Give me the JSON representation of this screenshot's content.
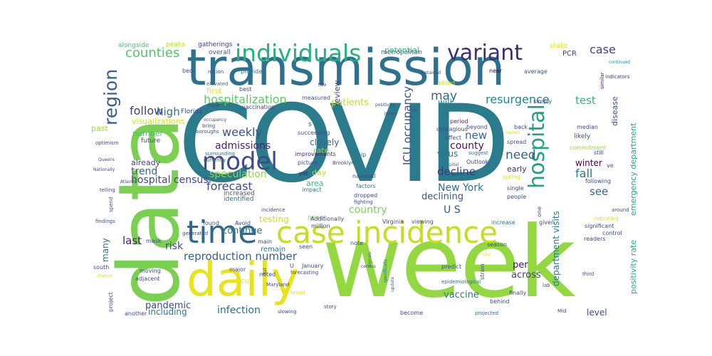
{
  "words": [
    {
      "text": "COVID",
      "color": "#2a7b8c"
    },
    {
      "text": "week",
      "color": "#93d741"
    },
    {
      "text": "data",
      "color": "#7ad151"
    },
    {
      "text": "transmission",
      "color": "#2c728e"
    },
    {
      "text": "daily",
      "color": "#e7e419"
    },
    {
      "text": "case incidence",
      "color": "#c2df23"
    },
    {
      "text": "individuals",
      "color": "#2ab07f"
    },
    {
      "text": "variant",
      "color": "#3f2d76"
    },
    {
      "text": "region",
      "color": "#355f8d"
    },
    {
      "text": "time",
      "color": "#31688e"
    },
    {
      "text": "hospital",
      "color": "#1fa187"
    },
    {
      "text": "model",
      "color": "#3e4a89"
    },
    {
      "text": "counties",
      "color": "#52c569"
    },
    {
      "text": "case",
      "color": "#433e85"
    },
    {
      "text": "may",
      "color": "#2f6b8e"
    },
    {
      "text": "ICU occupancy",
      "color": "#3b528b"
    },
    {
      "text": "hospitalization",
      "color": "#5ec962"
    },
    {
      "text": "resurgence",
      "color": "#24868e"
    },
    {
      "text": "test",
      "color": "#2fb47c"
    },
    {
      "text": "follow",
      "color": "#433e85"
    },
    {
      "text": "high",
      "color": "#2c728e"
    },
    {
      "text": "weekly",
      "color": "#3b528b"
    },
    {
      "text": "admissions",
      "color": "#482173"
    },
    {
      "text": "new",
      "color": "#31688e"
    },
    {
      "text": "county",
      "color": "#471164"
    },
    {
      "text": "forecast",
      "color": "#3e4a89"
    },
    {
      "text": "speculation",
      "color": "#8fd744"
    },
    {
      "text": "decline",
      "color": "#46327e"
    },
    {
      "text": "need",
      "color": "#355f8d"
    },
    {
      "text": "fall",
      "color": "#2a788e"
    },
    {
      "text": "hospital census",
      "color": "#3f4788"
    },
    {
      "text": "trend",
      "color": "#33638d"
    },
    {
      "text": "New York",
      "color": "#2d708e"
    },
    {
      "text": "U S",
      "color": "#3b528b"
    },
    {
      "text": "see",
      "color": "#306a8e"
    },
    {
      "text": "reproduction number",
      "color": "#355f8d"
    },
    {
      "text": "country",
      "color": "#7ad151"
    },
    {
      "text": "last",
      "color": "#482173"
    },
    {
      "text": "risk",
      "color": "#3e4a89"
    },
    {
      "text": "continue",
      "color": "#2c728e"
    },
    {
      "text": "testing",
      "color": "#d0e11c"
    },
    {
      "text": "pandemic",
      "color": "#3e4a89"
    },
    {
      "text": "infection",
      "color": "#2c728e"
    },
    {
      "text": "including",
      "color": "#29798e"
    },
    {
      "text": "vaccine",
      "color": "#2a788e"
    },
    {
      "text": "across",
      "color": "#443983"
    },
    {
      "text": "per",
      "color": "#471164"
    },
    {
      "text": "department visits",
      "color": "#2a788e"
    },
    {
      "text": "emergency department",
      "color": "#22a785"
    },
    {
      "text": "positivity rate",
      "color": "#25ac82"
    },
    {
      "text": "disease",
      "color": "#3b528b"
    },
    {
      "text": "winter",
      "color": "#440154"
    },
    {
      "text": "patients",
      "color": "#c2df23"
    },
    {
      "text": "review",
      "color": "#414487"
    },
    {
      "text": "closely",
      "color": "#31688e"
    },
    {
      "text": "declining",
      "color": "#38588c"
    },
    {
      "text": "level",
      "color": "#3e4a89"
    },
    {
      "text": "many",
      "color": "#2a788e"
    },
    {
      "text": "number",
      "color": "#40bd72"
    },
    {
      "text": "already",
      "color": "#423f85"
    },
    {
      "text": "past",
      "color": "#a5db36"
    },
    {
      "text": "will",
      "color": "#26828e"
    },
    {
      "text": "early",
      "color": "#472a7a"
    },
    {
      "text": "virus",
      "color": "#2c728e"
    },
    {
      "text": "area",
      "color": "#3aba76"
    },
    {
      "text": "day",
      "color": "#b5de2b"
    },
    {
      "text": "rate",
      "color": "#95d840"
    },
    {
      "text": "first",
      "color": "#e5e419"
    },
    {
      "text": "potential",
      "color": "#34b679"
    },
    {
      "text": "Florida",
      "color": "#3e4a89"
    },
    {
      "text": "PCR",
      "color": "#443983"
    },
    {
      "text": "state",
      "color": "#e5e419"
    },
    {
      "text": "overall",
      "color": "#38588c"
    },
    {
      "text": "gatherings",
      "color": "#433e85"
    },
    {
      "text": "peaks",
      "color": "#b8de29"
    },
    {
      "text": "alongside",
      "color": "#4ac16d"
    },
    {
      "text": "metropolitan",
      "color": "#2c728e"
    },
    {
      "text": "provide",
      "color": "#2a788e"
    },
    {
      "text": "nation",
      "color": "#39568c"
    },
    {
      "text": "bed",
      "color": "#3b528b"
    },
    {
      "text": "elevated",
      "color": "#2c728e"
    },
    {
      "text": "best",
      "color": "#423f85"
    },
    {
      "text": "measured",
      "color": "#39568c"
    },
    {
      "text": "added",
      "color": "#c8e020"
    },
    {
      "text": "near",
      "color": "#440154"
    },
    {
      "text": "average",
      "color": "#3b528b"
    },
    {
      "text": "similar",
      "color": "#48186a"
    },
    {
      "text": "indicators",
      "color": "#46337e"
    },
    {
      "text": "continued",
      "color": "#26828e"
    },
    {
      "text": "two",
      "color": "#440154"
    },
    {
      "text": "now",
      "color": "#3e4a89"
    },
    {
      "text": "vaccination",
      "color": "#424086"
    },
    {
      "text": "visualizations",
      "color": "#d8e219"
    },
    {
      "text": "bring",
      "color": "#3e4a89"
    },
    {
      "text": "boroughs",
      "color": "#3b528b"
    },
    {
      "text": "future",
      "color": "#39568c"
    },
    {
      "text": "optimism",
      "color": "#414487"
    },
    {
      "text": "surrounding",
      "color": "#2c728e"
    },
    {
      "text": "currently",
      "color": "#2a788e"
    },
    {
      "text": "increased",
      "color": "#38588c"
    },
    {
      "text": "identified",
      "color": "#2c728e"
    },
    {
      "text": "improvements",
      "color": "#481f70"
    },
    {
      "text": "picture",
      "color": "#3e4a89"
    },
    {
      "text": "Brooklyn",
      "color": "#3e4a89"
    },
    {
      "text": "yet",
      "color": "#481f70"
    },
    {
      "text": "impact",
      "color": "#2c728e"
    },
    {
      "text": "national",
      "color": "#3e4a89"
    },
    {
      "text": "factors",
      "color": "#2a788e"
    },
    {
      "text": "dropped",
      "color": "#3b528b"
    },
    {
      "text": "fighting",
      "color": "#3e4a89"
    },
    {
      "text": "never",
      "color": "#7fd34e"
    },
    {
      "text": "succeeding",
      "color": "#3e4a89"
    },
    {
      "text": "Jersey",
      "color": "#3b528b"
    },
    {
      "text": "capital",
      "color": "#2c728e"
    },
    {
      "text": "Outlook",
      "color": "#3e4a89"
    },
    {
      "text": "effect",
      "color": "#39568c"
    },
    {
      "text": "beyond",
      "color": "#3e4a89"
    },
    {
      "text": "period",
      "color": "#481f70"
    },
    {
      "text": "contagious",
      "color": "#3e4a89"
    },
    {
      "text": "help",
      "color": "#2a788e"
    },
    {
      "text": "back",
      "color": "#3e4a89"
    },
    {
      "text": "spread",
      "color": "#3b528b"
    },
    {
      "text": "suggest",
      "color": "#2c728e"
    },
    {
      "text": "median",
      "color": "#3e4a89"
    },
    {
      "text": "likely",
      "color": "#3e4a89"
    },
    {
      "text": "commitment",
      "color": "#95d840"
    },
    {
      "text": "still",
      "color": "#3e4a89"
    },
    {
      "text": "following",
      "color": "#3e4a89"
    },
    {
      "text": "spring",
      "color": "#d8e219"
    },
    {
      "text": "simply",
      "color": "#3e4a89"
    },
    {
      "text": "single",
      "color": "#3e4a89"
    },
    {
      "text": "people",
      "color": "#3e4a89"
    },
    {
      "text": "one",
      "color": "#3e4a89"
    },
    {
      "text": "increase",
      "color": "#2c728e"
    },
    {
      "text": "given",
      "color": "#3e4a89"
    },
    {
      "text": "significant",
      "color": "#3e4a89"
    },
    {
      "text": "around",
      "color": "#3e4a89"
    },
    {
      "text": "indicating",
      "color": "#d8e219"
    },
    {
      "text": "control",
      "color": "#3e4a89"
    },
    {
      "text": "readers",
      "color": "#3e4a89"
    },
    {
      "text": "predict",
      "color": "#3e4a89"
    },
    {
      "text": "strain",
      "color": "#3e4a89"
    },
    {
      "text": "season",
      "color": "#3e4a89"
    },
    {
      "text": "city",
      "color": "#d8e219"
    },
    {
      "text": "epidemiological",
      "color": "#2c728e"
    },
    {
      "text": "behind",
      "color": "#3e4a89"
    },
    {
      "text": "finally",
      "color": "#3e4a89"
    },
    {
      "text": "become",
      "color": "#3e4a89"
    },
    {
      "text": "projected",
      "color": "#2c728e"
    },
    {
      "text": "third",
      "color": "#3e4a89"
    },
    {
      "text": "Mid",
      "color": "#3e4a89"
    },
    {
      "text": "lab",
      "color": "#3e4a89"
    },
    {
      "text": "viewing",
      "color": "#3e4a89"
    },
    {
      "text": "Virginia",
      "color": "#3e4a89"
    },
    {
      "text": "million",
      "color": "#3e4a89"
    },
    {
      "text": "Additionally",
      "color": "#3e4a89"
    },
    {
      "text": "incidence",
      "color": "#3e4a89"
    },
    {
      "text": "note",
      "color": "#3e4a89"
    },
    {
      "text": "census",
      "color": "#3e4a89"
    },
    {
      "text": "signals",
      "color": "#2c728e"
    },
    {
      "text": "specifically",
      "color": "#2c728e"
    },
    {
      "text": "update",
      "color": "#2c728e"
    },
    {
      "text": "story",
      "color": "#3e4a89"
    },
    {
      "text": "slowing",
      "color": "#3e4a89"
    },
    {
      "text": "broad",
      "color": "#d8e219"
    },
    {
      "text": "flat",
      "color": "#3e4a89"
    },
    {
      "text": "Maryland",
      "color": "#3e4a89"
    },
    {
      "text": "forecasting",
      "color": "#3e4a89"
    },
    {
      "text": "January",
      "color": "#3e4a89"
    },
    {
      "text": "U",
      "color": "#3e4a89"
    },
    {
      "text": "seen",
      "color": "#3e4a89"
    },
    {
      "text": "main",
      "color": "#3e4a89"
    },
    {
      "text": "remain",
      "color": "#2c728e"
    },
    {
      "text": "noted",
      "color": "#3e4a89"
    },
    {
      "text": "ICU",
      "color": "#d8e219"
    },
    {
      "text": "major",
      "color": "#3e4a89"
    },
    {
      "text": "found",
      "color": "#3e4a89"
    },
    {
      "text": "Avoid",
      "color": "#3e4a89"
    },
    {
      "text": "mask",
      "color": "#3e4a89"
    },
    {
      "text": "moving",
      "color": "#3e4a89"
    },
    {
      "text": "adjacent",
      "color": "#3e4a89"
    },
    {
      "text": "project",
      "color": "#3e4a89"
    },
    {
      "text": "south",
      "color": "#3e4a89"
    },
    {
      "text": "another",
      "color": "#3e4a89"
    },
    {
      "text": "generated",
      "color": "#3e4a89"
    },
    {
      "text": "findings",
      "color": "#3e4a89"
    },
    {
      "text": "telling",
      "color": "#3e4a89"
    },
    {
      "text": "spend",
      "color": "#3e4a89"
    },
    {
      "text": "Nationally",
      "color": "#3e4a89"
    },
    {
      "text": "Queens",
      "color": "#3e4a89"
    },
    {
      "text": "chance",
      "color": "#d8e219"
    },
    {
      "text": "Atlantic",
      "color": "#3e4a89"
    },
    {
      "text": "occupancy",
      "color": "#3e4a89"
    },
    {
      "text": "positivity",
      "color": "#3e4a89"
    },
    {
      "text": "fell",
      "color": "#3e4a89"
    },
    {
      "text": "sustained",
      "color": "#3e4a89"
    },
    {
      "text": "hovers",
      "color": "#d8e219"
    },
    {
      "text": "ve",
      "color": "#3e4a89"
    },
    {
      "text": "s",
      "color": "#3e4a89"
    }
  ]
}
